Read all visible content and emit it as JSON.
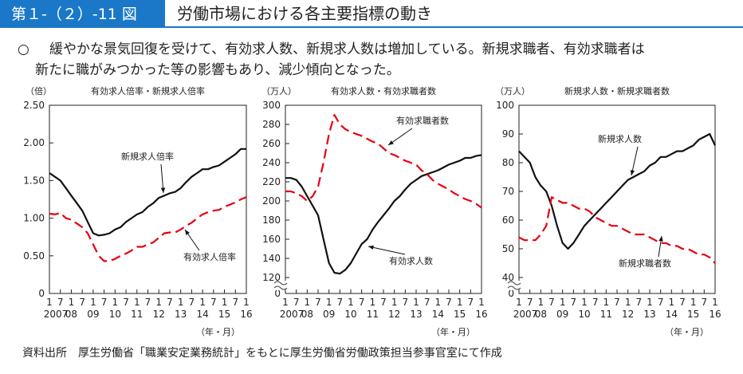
{
  "header": {
    "figure_number": "第１-（２）-11 図",
    "title": "労働市場における各主要指標の動き"
  },
  "summary": {
    "bullet": "○",
    "lines": [
      "緩やかな景気回復を受けて、有効求人数、新規求人数は増加している。新規求職者、有効求職者は",
      "新たに職がみつかった等の影響もあり、減少傾向となった。"
    ]
  },
  "source": "資料出所　厚生労働省「職業安定業務統計」をもとに厚生労働省労働政策担当参事官室にて作成",
  "chart_data": [
    {
      "type": "line",
      "title": "有効求人倍率・新規求人倍率",
      "y_unit": "（倍）",
      "x_unit": "（年・月）",
      "x": [
        "2007-01",
        "2007-04",
        "2007-07",
        "2007-10",
        "2008-01",
        "2008-04",
        "2008-07",
        "2008-10",
        "2009-01",
        "2009-04",
        "2009-07",
        "2009-10",
        "2010-01",
        "2010-04",
        "2010-07",
        "2010-10",
        "2011-01",
        "2011-04",
        "2011-07",
        "2011-10",
        "2012-01",
        "2012-04",
        "2012-07",
        "2012-10",
        "2013-01",
        "2013-04",
        "2013-07",
        "2013-10",
        "2014-01",
        "2014-04",
        "2014-07",
        "2014-10",
        "2015-01",
        "2015-04",
        "2015-07",
        "2015-10",
        "2016-01"
      ],
      "xlim": [
        "2007-01",
        "2016-01"
      ],
      "xticks": [
        {
          "value": "2007-01",
          "label": "1"
        },
        {
          "value": "2007-07",
          "label": "7"
        },
        {
          "value": "2008-01",
          "label": "1"
        },
        {
          "value": "2008-07",
          "label": "7"
        },
        {
          "value": "2009-01",
          "label": "1"
        },
        {
          "value": "2009-07",
          "label": "7"
        },
        {
          "value": "2010-01",
          "label": "1"
        },
        {
          "value": "2010-07",
          "label": "7"
        },
        {
          "value": "2011-01",
          "label": "1"
        },
        {
          "value": "2011-07",
          "label": "7"
        },
        {
          "value": "2012-01",
          "label": "1"
        },
        {
          "value": "2012-07",
          "label": "7"
        },
        {
          "value": "2013-01",
          "label": "1"
        },
        {
          "value": "2013-07",
          "label": "7"
        },
        {
          "value": "2014-01",
          "label": "1"
        },
        {
          "value": "2014-07",
          "label": "7"
        },
        {
          "value": "2015-01",
          "label": "1"
        },
        {
          "value": "2015-07",
          "label": "7"
        },
        {
          "value": "2016-01",
          "label": "1"
        }
      ],
      "x_year_labels": [
        {
          "value": "2007-01",
          "label": "2007"
        },
        {
          "value": "2008-01",
          "label": "08"
        },
        {
          "value": "2009-01",
          "label": "09"
        },
        {
          "value": "2010-01",
          "label": "10"
        },
        {
          "value": "2011-01",
          "label": "11"
        },
        {
          "value": "2012-01",
          "label": "12"
        },
        {
          "value": "2013-01",
          "label": "13"
        },
        {
          "value": "2014-01",
          "label": "14"
        },
        {
          "value": "2015-01",
          "label": "15"
        },
        {
          "value": "2016-01",
          "label": "16"
        }
      ],
      "ylim": [
        0,
        2.5
      ],
      "yticks": [
        0,
        {
          "value": 0.5,
          "label": "0.50"
        },
        {
          "value": 1,
          "label": "1.00"
        },
        {
          "value": 1.5,
          "label": "1.50"
        },
        {
          "value": 2,
          "label": "2.00"
        },
        {
          "value": 2.5,
          "label": "2.50"
        }
      ],
      "series": [
        {
          "name": "新規求人倍率",
          "color": "#111111",
          "dashed": false,
          "values": [
            1.6,
            1.55,
            1.5,
            1.4,
            1.3,
            1.2,
            1.1,
            0.95,
            0.8,
            0.77,
            0.78,
            0.8,
            0.85,
            0.88,
            0.95,
            1.0,
            1.05,
            1.08,
            1.15,
            1.2,
            1.27,
            1.3,
            1.33,
            1.35,
            1.4,
            1.48,
            1.55,
            1.6,
            1.65,
            1.65,
            1.68,
            1.7,
            1.75,
            1.8,
            1.85,
            1.92,
            1.92
          ]
        },
        {
          "name": "有効求人倍率",
          "color": "#e60012",
          "dashed": true,
          "values": [
            1.06,
            1.05,
            1.07,
            1.0,
            0.98,
            0.93,
            0.88,
            0.8,
            0.65,
            0.5,
            0.43,
            0.43,
            0.46,
            0.5,
            0.53,
            0.57,
            0.62,
            0.62,
            0.65,
            0.68,
            0.74,
            0.8,
            0.81,
            0.81,
            0.85,
            0.9,
            0.94,
            1.0,
            1.05,
            1.08,
            1.1,
            1.11,
            1.15,
            1.18,
            1.21,
            1.25,
            1.28
          ]
        }
      ]
    },
    {
      "type": "line",
      "title": "有効求人数・有効求職者数",
      "y_unit": "（万人）",
      "x_unit": "（年・月）",
      "x": [
        "2007-01",
        "2007-04",
        "2007-07",
        "2007-10",
        "2008-01",
        "2008-04",
        "2008-07",
        "2008-10",
        "2009-01",
        "2009-04",
        "2009-07",
        "2009-10",
        "2010-01",
        "2010-04",
        "2010-07",
        "2010-10",
        "2011-01",
        "2011-04",
        "2011-07",
        "2011-10",
        "2012-01",
        "2012-04",
        "2012-07",
        "2012-10",
        "2013-01",
        "2013-04",
        "2013-07",
        "2013-10",
        "2014-01",
        "2014-04",
        "2014-07",
        "2014-10",
        "2015-01",
        "2015-04",
        "2015-07",
        "2015-10",
        "2016-01"
      ],
      "xlim": [
        "2007-01",
        "2016-01"
      ],
      "xticks": [
        {
          "value": "2007-01",
          "label": "1"
        },
        {
          "value": "2007-07",
          "label": "7"
        },
        {
          "value": "2008-01",
          "label": "1"
        },
        {
          "value": "2008-07",
          "label": "7"
        },
        {
          "value": "2009-01",
          "label": "1"
        },
        {
          "value": "2009-07",
          "label": "7"
        },
        {
          "value": "2010-01",
          "label": "1"
        },
        {
          "value": "2010-07",
          "label": "7"
        },
        {
          "value": "2011-01",
          "label": "1"
        },
        {
          "value": "2011-07",
          "label": "7"
        },
        {
          "value": "2012-01",
          "label": "1"
        },
        {
          "value": "2012-07",
          "label": "7"
        },
        {
          "value": "2013-01",
          "label": "1"
        },
        {
          "value": "2013-07",
          "label": "7"
        },
        {
          "value": "2014-01",
          "label": "1"
        },
        {
          "value": "2014-07",
          "label": "7"
        },
        {
          "value": "2015-01",
          "label": "1"
        },
        {
          "value": "2015-07",
          "label": "7"
        },
        {
          "value": "2016-01",
          "label": "1"
        }
      ],
      "x_year_labels": [
        {
          "value": "2007-01",
          "label": "2007"
        },
        {
          "value": "2008-01",
          "label": "08"
        },
        {
          "value": "2009-01",
          "label": "09"
        },
        {
          "value": "2010-01",
          "label": "10"
        },
        {
          "value": "2011-01",
          "label": "11"
        },
        {
          "value": "2012-01",
          "label": "12"
        },
        {
          "value": "2013-01",
          "label": "13"
        },
        {
          "value": "2014-01",
          "label": "14"
        },
        {
          "value": "2015-01",
          "label": "15"
        },
        {
          "value": "2016-01",
          "label": "16"
        }
      ],
      "ylim": [
        0,
        300
      ],
      "axis_break": [
        0,
        120
      ],
      "yticks": [
        0,
        120,
        140,
        160,
        180,
        200,
        220,
        240,
        260,
        280,
        300
      ],
      "series": [
        {
          "name": "有効求人数",
          "color": "#111111",
          "dashed": false,
          "values": [
            224,
            224,
            222,
            215,
            205,
            195,
            185,
            160,
            135,
            125,
            124,
            128,
            135,
            145,
            155,
            160,
            170,
            178,
            185,
            192,
            200,
            205,
            212,
            218,
            222,
            226,
            228,
            230,
            232,
            235,
            238,
            240,
            242,
            245,
            245,
            247,
            248
          ]
        },
        {
          "name": "有効求職者数",
          "color": "#e60012",
          "dashed": true,
          "values": [
            210,
            210,
            208,
            205,
            200,
            205,
            215,
            240,
            270,
            290,
            280,
            275,
            272,
            270,
            268,
            265,
            262,
            260,
            255,
            250,
            248,
            245,
            242,
            240,
            238,
            232,
            228,
            222,
            218,
            215,
            212,
            208,
            205,
            202,
            200,
            197,
            193
          ]
        }
      ]
    },
    {
      "type": "line",
      "title": "新規求人数・新規求職者数",
      "y_unit": "（万人）",
      "x_unit": "（年・月）",
      "x": [
        "2007-01",
        "2007-04",
        "2007-07",
        "2007-10",
        "2008-01",
        "2008-04",
        "2008-07",
        "2008-10",
        "2009-01",
        "2009-04",
        "2009-07",
        "2009-10",
        "2010-01",
        "2010-04",
        "2010-07",
        "2010-10",
        "2011-01",
        "2011-04",
        "2011-07",
        "2011-10",
        "2012-01",
        "2012-04",
        "2012-07",
        "2012-10",
        "2013-01",
        "2013-04",
        "2013-07",
        "2013-10",
        "2014-01",
        "2014-04",
        "2014-07",
        "2014-10",
        "2015-01",
        "2015-04",
        "2015-07",
        "2015-10",
        "2016-01"
      ],
      "xlim": [
        "2007-01",
        "2016-01"
      ],
      "xticks": [
        {
          "value": "2007-01",
          "label": "1"
        },
        {
          "value": "2007-07",
          "label": "7"
        },
        {
          "value": "2008-01",
          "label": "1"
        },
        {
          "value": "2008-07",
          "label": "7"
        },
        {
          "value": "2009-01",
          "label": "1"
        },
        {
          "value": "2009-07",
          "label": "7"
        },
        {
          "value": "2010-01",
          "label": "1"
        },
        {
          "value": "2010-07",
          "label": "7"
        },
        {
          "value": "2011-01",
          "label": "1"
        },
        {
          "value": "2011-07",
          "label": "7"
        },
        {
          "value": "2012-01",
          "label": "1"
        },
        {
          "value": "2012-07",
          "label": "7"
        },
        {
          "value": "2013-01",
          "label": "1"
        },
        {
          "value": "2013-07",
          "label": "7"
        },
        {
          "value": "2014-01",
          "label": "1"
        },
        {
          "value": "2014-07",
          "label": "7"
        },
        {
          "value": "2015-01",
          "label": "1"
        },
        {
          "value": "2015-07",
          "label": "7"
        },
        {
          "value": "2016-01",
          "label": "1"
        }
      ],
      "x_year_labels": [
        {
          "value": "2007-01",
          "label": "2007"
        },
        {
          "value": "2008-01",
          "label": "08"
        },
        {
          "value": "2009-01",
          "label": "09"
        },
        {
          "value": "2010-01",
          "label": "10"
        },
        {
          "value": "2011-01",
          "label": "11"
        },
        {
          "value": "2012-01",
          "label": "12"
        },
        {
          "value": "2013-01",
          "label": "13"
        },
        {
          "value": "2014-01",
          "label": "14"
        },
        {
          "value": "2015-01",
          "label": "15"
        },
        {
          "value": "2016-01",
          "label": "16"
        }
      ],
      "ylim": [
        0,
        100
      ],
      "axis_break": [
        0,
        40
      ],
      "yticks": [
        0,
        40,
        50,
        60,
        70,
        80,
        90,
        100
      ],
      "series": [
        {
          "name": "新規求人数",
          "color": "#111111",
          "dashed": false,
          "values": [
            84,
            82,
            80,
            75,
            72,
            70,
            65,
            58,
            52,
            50,
            52,
            55,
            58,
            60,
            62,
            64,
            66,
            68,
            70,
            72,
            74,
            75,
            76,
            77,
            79,
            80,
            82,
            82,
            83,
            84,
            84,
            85,
            86,
            88,
            89,
            90,
            86
          ]
        },
        {
          "name": "新規求職者数",
          "color": "#e60012",
          "dashed": true,
          "values": [
            54,
            53,
            53,
            53,
            55,
            58,
            68,
            67,
            66,
            66,
            65,
            64,
            64,
            63,
            61,
            60,
            59,
            58,
            58,
            57,
            56,
            55,
            55,
            55,
            54,
            53,
            52,
            52,
            51,
            51,
            50,
            50,
            49,
            48,
            48,
            47,
            45
          ]
        }
      ]
    }
  ]
}
